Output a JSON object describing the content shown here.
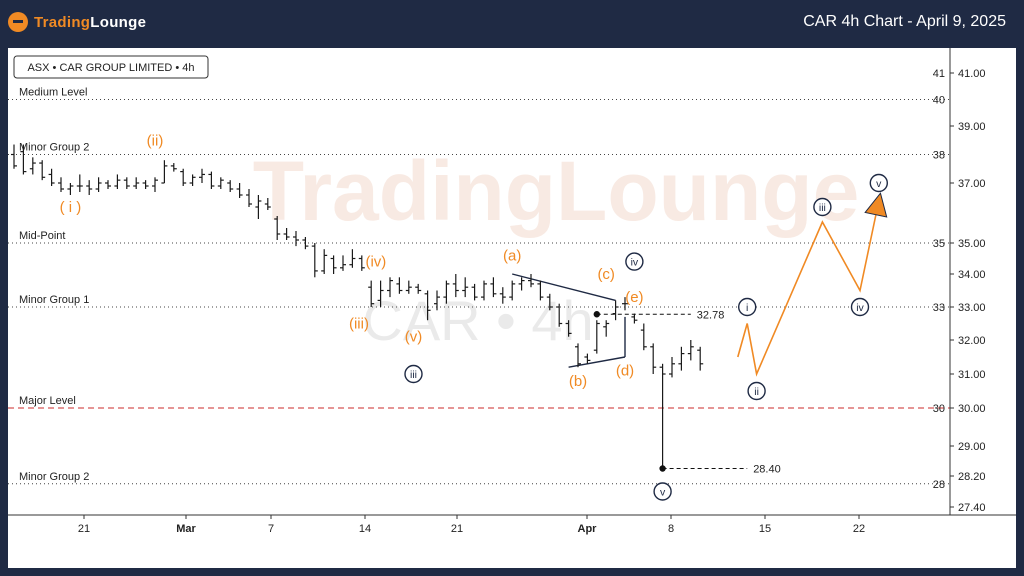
{
  "header": {
    "logo_part1": "Trading",
    "logo_part2": "Lounge",
    "title": "CAR 4h Chart - April 9, 2025"
  },
  "chart_data": {
    "type": "candlestick",
    "symbol_label": "ASX • CAR GROUP LIMITED • 4h",
    "watermark_brand": "TradingLounge",
    "watermark_ticker": "CAR • 4h",
    "colors": {
      "wave_orange": "#f08a24",
      "wave_navy": "#1f2a44",
      "major_level": "#cc2b2b",
      "header_bg": "#1f2a44"
    },
    "y_axis": {
      "ticks": [
        27.4,
        28.2,
        29.0,
        30.0,
        31.0,
        32.0,
        33.0,
        34.0,
        35.0,
        37.0,
        39.0,
        41.0
      ],
      "tick_labels": [
        "27.40",
        "28.20",
        "29.00",
        "30.00",
        "31.00",
        "32.00",
        "33.00",
        "34.00",
        "35.00",
        "37.00",
        "39.00",
        "41.00"
      ],
      "range": [
        27.0,
        42.0
      ]
    },
    "x_axis": {
      "tick_labels": [
        "21",
        "Mar",
        "7",
        "14",
        "21",
        "Apr",
        "8",
        "15",
        "22"
      ],
      "bold_labels": [
        "Mar",
        "Apr"
      ]
    },
    "levels": [
      {
        "name": "Medium Level",
        "price": 40.0,
        "tag": "40",
        "style": "dotted",
        "color": "#444444"
      },
      {
        "name": "Minor Group 2",
        "price": 38.0,
        "tag": "38",
        "style": "dotted",
        "color": "#444444"
      },
      {
        "name": "Mid-Point",
        "price": 35.0,
        "tag": "35",
        "style": "dotted",
        "color": "#444444"
      },
      {
        "name": "Minor Group 1",
        "price": 33.0,
        "tag": "33",
        "style": "dotted",
        "color": "#444444"
      },
      {
        "name": "Major Level",
        "price": 30.0,
        "tag": "30",
        "style": "dashed",
        "color": "#cc2b2b"
      },
      {
        "name": "Minor Group 2",
        "price": 28.0,
        "tag": "28",
        "style": "dotted",
        "color": "#444444"
      }
    ],
    "level_41_tag": "41",
    "price_markers": [
      {
        "label": "32.78",
        "price": 32.78,
        "x_from": 62,
        "x_to": 72
      },
      {
        "label": "28.40",
        "price": 28.4,
        "x_from": 69,
        "x_to": 78
      }
    ],
    "bars": [
      {
        "x": 0,
        "o": 38.0,
        "h": 38.35,
        "l": 37.5,
        "c": 37.6
      },
      {
        "x": 1,
        "o": 38.1,
        "h": 38.35,
        "l": 37.3,
        "c": 37.4
      },
      {
        "x": 2,
        "o": 37.5,
        "h": 37.9,
        "l": 37.3,
        "c": 37.7
      },
      {
        "x": 3,
        "o": 37.7,
        "h": 37.8,
        "l": 37.1,
        "c": 37.2
      },
      {
        "x": 4,
        "o": 37.3,
        "h": 37.5,
        "l": 36.9,
        "c": 37.0
      },
      {
        "x": 5,
        "o": 37.0,
        "h": 37.2,
        "l": 36.7,
        "c": 36.8
      },
      {
        "x": 6,
        "o": 36.8,
        "h": 37.0,
        "l": 36.6,
        "c": 36.9
      },
      {
        "x": 7,
        "o": 36.9,
        "h": 37.3,
        "l": 36.7,
        "c": 36.9
      },
      {
        "x": 8,
        "o": 36.9,
        "h": 37.1,
        "l": 36.6,
        "c": 36.8
      },
      {
        "x": 9,
        "o": 36.8,
        "h": 37.2,
        "l": 36.7,
        "c": 37.0
      },
      {
        "x": 10,
        "o": 37.0,
        "h": 37.1,
        "l": 36.8,
        "c": 36.9
      },
      {
        "x": 11,
        "o": 36.9,
        "h": 37.3,
        "l": 36.8,
        "c": 37.1
      },
      {
        "x": 12,
        "o": 37.1,
        "h": 37.2,
        "l": 36.8,
        "c": 36.9
      },
      {
        "x": 13,
        "o": 36.9,
        "h": 37.2,
        "l": 36.8,
        "c": 37.0
      },
      {
        "x": 14,
        "o": 37.0,
        "h": 37.1,
        "l": 36.8,
        "c": 36.9
      },
      {
        "x": 15,
        "o": 36.9,
        "h": 37.2,
        "l": 36.7,
        "c": 37.1
      },
      {
        "x": 16,
        "o": 37.0,
        "h": 37.8,
        "l": 37.0,
        "c": 37.6
      },
      {
        "x": 17,
        "o": 37.6,
        "h": 37.7,
        "l": 37.4,
        "c": 37.5
      },
      {
        "x": 18,
        "o": 37.4,
        "h": 37.5,
        "l": 36.9,
        "c": 37.0
      },
      {
        "x": 19,
        "o": 37.0,
        "h": 37.3,
        "l": 36.9,
        "c": 37.2
      },
      {
        "x": 20,
        "o": 37.2,
        "h": 37.5,
        "l": 37.0,
        "c": 37.3
      },
      {
        "x": 21,
        "o": 37.3,
        "h": 37.4,
        "l": 36.8,
        "c": 36.9
      },
      {
        "x": 22,
        "o": 36.9,
        "h": 37.2,
        "l": 36.8,
        "c": 37.1
      },
      {
        "x": 23,
        "o": 37.0,
        "h": 37.1,
        "l": 36.7,
        "c": 36.8
      },
      {
        "x": 24,
        "o": 36.8,
        "h": 37.0,
        "l": 36.5,
        "c": 36.6
      },
      {
        "x": 25,
        "o": 36.6,
        "h": 36.8,
        "l": 36.2,
        "c": 36.3
      },
      {
        "x": 26,
        "o": 36.2,
        "h": 36.6,
        "l": 35.8,
        "c": 36.4
      },
      {
        "x": 27,
        "o": 36.3,
        "h": 36.5,
        "l": 36.1,
        "c": 36.2
      },
      {
        "x": 28,
        "o": 35.8,
        "h": 35.9,
        "l": 35.1,
        "c": 35.3
      },
      {
        "x": 29,
        "o": 35.3,
        "h": 35.5,
        "l": 35.1,
        "c": 35.2
      },
      {
        "x": 30,
        "o": 35.2,
        "h": 35.4,
        "l": 34.9,
        "c": 35.1
      },
      {
        "x": 31,
        "o": 35.1,
        "h": 35.2,
        "l": 34.8,
        "c": 34.9
      },
      {
        "x": 32,
        "o": 34.9,
        "h": 35.0,
        "l": 33.9,
        "c": 34.1
      },
      {
        "x": 33,
        "o": 34.1,
        "h": 34.8,
        "l": 34.0,
        "c": 34.6
      },
      {
        "x": 34,
        "o": 34.5,
        "h": 34.6,
        "l": 34.0,
        "c": 34.2
      },
      {
        "x": 35,
        "o": 34.2,
        "h": 34.6,
        "l": 34.1,
        "c": 34.3
      },
      {
        "x": 36,
        "o": 34.3,
        "h": 34.8,
        "l": 34.2,
        "c": 34.5
      },
      {
        "x": 37,
        "o": 34.5,
        "h": 34.6,
        "l": 34.1,
        "c": 34.2
      },
      {
        "x": 38,
        "o": 33.6,
        "h": 33.8,
        "l": 33.0,
        "c": 33.1
      },
      {
        "x": 39,
        "o": 33.2,
        "h": 33.8,
        "l": 33.0,
        "c": 33.5
      },
      {
        "x": 40,
        "o": 33.5,
        "h": 33.9,
        "l": 33.3,
        "c": 33.8
      },
      {
        "x": 41,
        "o": 33.7,
        "h": 33.9,
        "l": 33.4,
        "c": 33.5
      },
      {
        "x": 42,
        "o": 33.5,
        "h": 33.8,
        "l": 33.4,
        "c": 33.6
      },
      {
        "x": 43,
        "o": 33.6,
        "h": 33.7,
        "l": 33.4,
        "c": 33.5
      },
      {
        "x": 44,
        "o": 33.4,
        "h": 33.5,
        "l": 32.6,
        "c": 32.9
      },
      {
        "x": 45,
        "o": 33.1,
        "h": 33.5,
        "l": 32.9,
        "c": 33.3
      },
      {
        "x": 46,
        "o": 33.3,
        "h": 33.8,
        "l": 33.1,
        "c": 33.7
      },
      {
        "x": 47,
        "o": 33.7,
        "h": 34.0,
        "l": 33.3,
        "c": 33.5
      },
      {
        "x": 48,
        "o": 33.5,
        "h": 33.9,
        "l": 33.3,
        "c": 33.6
      },
      {
        "x": 49,
        "o": 33.6,
        "h": 33.7,
        "l": 33.2,
        "c": 33.3
      },
      {
        "x": 50,
        "o": 33.3,
        "h": 33.8,
        "l": 33.2,
        "c": 33.7
      },
      {
        "x": 51,
        "o": 33.7,
        "h": 33.9,
        "l": 33.3,
        "c": 33.4
      },
      {
        "x": 52,
        "o": 33.4,
        "h": 33.6,
        "l": 33.1,
        "c": 33.3
      },
      {
        "x": 53,
        "o": 33.3,
        "h": 33.8,
        "l": 33.2,
        "c": 33.7
      },
      {
        "x": 54,
        "o": 33.7,
        "h": 33.9,
        "l": 33.5,
        "c": 33.8
      },
      {
        "x": 55,
        "o": 33.8,
        "h": 34.0,
        "l": 33.6,
        "c": 33.7
      },
      {
        "x": 56,
        "o": 33.7,
        "h": 33.8,
        "l": 33.2,
        "c": 33.3
      },
      {
        "x": 57,
        "o": 33.3,
        "h": 33.4,
        "l": 32.9,
        "c": 33.0
      },
      {
        "x": 58,
        "o": 33.0,
        "h": 33.1,
        "l": 32.4,
        "c": 32.5
      },
      {
        "x": 59,
        "o": 32.5,
        "h": 32.6,
        "l": 32.1,
        "c": 32.2
      },
      {
        "x": 60,
        "o": 31.8,
        "h": 31.9,
        "l": 31.2,
        "c": 31.3
      },
      {
        "x": 61,
        "o": 31.5,
        "h": 31.6,
        "l": 31.3,
        "c": 31.4
      },
      {
        "x": 62,
        "o": 31.7,
        "h": 32.6,
        "l": 31.6,
        "c": 32.5
      },
      {
        "x": 63,
        "o": 32.4,
        "h": 32.6,
        "l": 32.1,
        "c": 32.5
      },
      {
        "x": 64,
        "o": 32.8,
        "h": 33.2,
        "l": 32.6,
        "c": 33.0
      },
      {
        "x": 65,
        "o": 33.1,
        "h": 33.3,
        "l": 32.9,
        "c": 33.1
      },
      {
        "x": 66,
        "o": 32.7,
        "h": 32.8,
        "l": 32.5,
        "c": 32.6
      },
      {
        "x": 67,
        "o": 32.3,
        "h": 32.5,
        "l": 31.7,
        "c": 31.8
      },
      {
        "x": 68,
        "o": 31.8,
        "h": 31.9,
        "l": 31.0,
        "c": 31.2
      },
      {
        "x": 69,
        "o": 31.2,
        "h": 31.3,
        "l": 28.4,
        "c": 31.0
      },
      {
        "x": 70,
        "o": 31.0,
        "h": 31.5,
        "l": 30.9,
        "c": 31.3
      },
      {
        "x": 71,
        "o": 31.3,
        "h": 31.8,
        "l": 31.1,
        "c": 31.6
      },
      {
        "x": 72,
        "o": 31.6,
        "h": 32.0,
        "l": 31.4,
        "c": 31.8
      },
      {
        "x": 73,
        "o": 31.7,
        "h": 31.8,
        "l": 31.1,
        "c": 31.3
      }
    ],
    "wave_lines": [
      {
        "color": "#1f2a44",
        "points": [
          [
            53,
            34.0
          ],
          [
            64,
            33.2
          ]
        ]
      },
      {
        "color": "#1f2a44",
        "points": [
          [
            59,
            31.2
          ],
          [
            65,
            31.5
          ]
        ]
      },
      {
        "color": "#1f2a44",
        "points": [
          [
            65,
            31.5
          ],
          [
            65,
            32.7
          ]
        ]
      }
    ],
    "projection": {
      "color": "#f08a24",
      "points": [
        [
          77,
          31.5
        ],
        [
          78,
          32.5
        ],
        [
          79,
          31.0
        ],
        [
          86,
          35.7
        ],
        [
          90,
          33.5
        ],
        [
          92,
          36.4
        ]
      ]
    },
    "wave_labels": [
      {
        "text": "(ii)",
        "x": 15,
        "y": 38.5,
        "color": "orange",
        "circled": false
      },
      {
        "text": "( i )",
        "x": 6,
        "y": 36.2,
        "color": "orange",
        "circled": false
      },
      {
        "text": "(iv)",
        "x": 38.5,
        "y": 34.4,
        "color": "orange",
        "circled": false
      },
      {
        "text": "(iii)",
        "x": 36.7,
        "y": 32.5,
        "color": "orange",
        "circled": false
      },
      {
        "text": "(v)",
        "x": 42.5,
        "y": 32.1,
        "color": "orange",
        "circled": false
      },
      {
        "text": "iii",
        "x": 42.5,
        "y": 31.0,
        "color": "navy",
        "circled": true
      },
      {
        "text": "(a)",
        "x": 53,
        "y": 34.6,
        "color": "orange",
        "circled": false
      },
      {
        "text": "(b)",
        "x": 60,
        "y": 30.8,
        "color": "orange",
        "circled": false
      },
      {
        "text": "(c)",
        "x": 63,
        "y": 34.0,
        "color": "orange",
        "circled": false
      },
      {
        "text": "(d)",
        "x": 65,
        "y": 31.1,
        "color": "orange",
        "circled": false
      },
      {
        "text": "(e)",
        "x": 66,
        "y": 33.3,
        "color": "orange",
        "circled": false
      },
      {
        "text": "iv",
        "x": 66,
        "y": 34.4,
        "color": "navy",
        "circled": true
      },
      {
        "text": "v",
        "x": 69,
        "y": 27.8,
        "color": "navy",
        "circled": true
      },
      {
        "text": "i",
        "x": 78,
        "y": 33.0,
        "color": "navy",
        "circled": true
      },
      {
        "text": "ii",
        "x": 79,
        "y": 30.5,
        "color": "navy",
        "circled": true
      },
      {
        "text": "iii",
        "x": 86,
        "y": 36.2,
        "color": "navy",
        "circled": true
      },
      {
        "text": "iv",
        "x": 90,
        "y": 33.0,
        "color": "navy",
        "circled": true
      },
      {
        "text": "v",
        "x": 92,
        "y": 37.0,
        "color": "navy",
        "circled": true
      }
    ]
  }
}
